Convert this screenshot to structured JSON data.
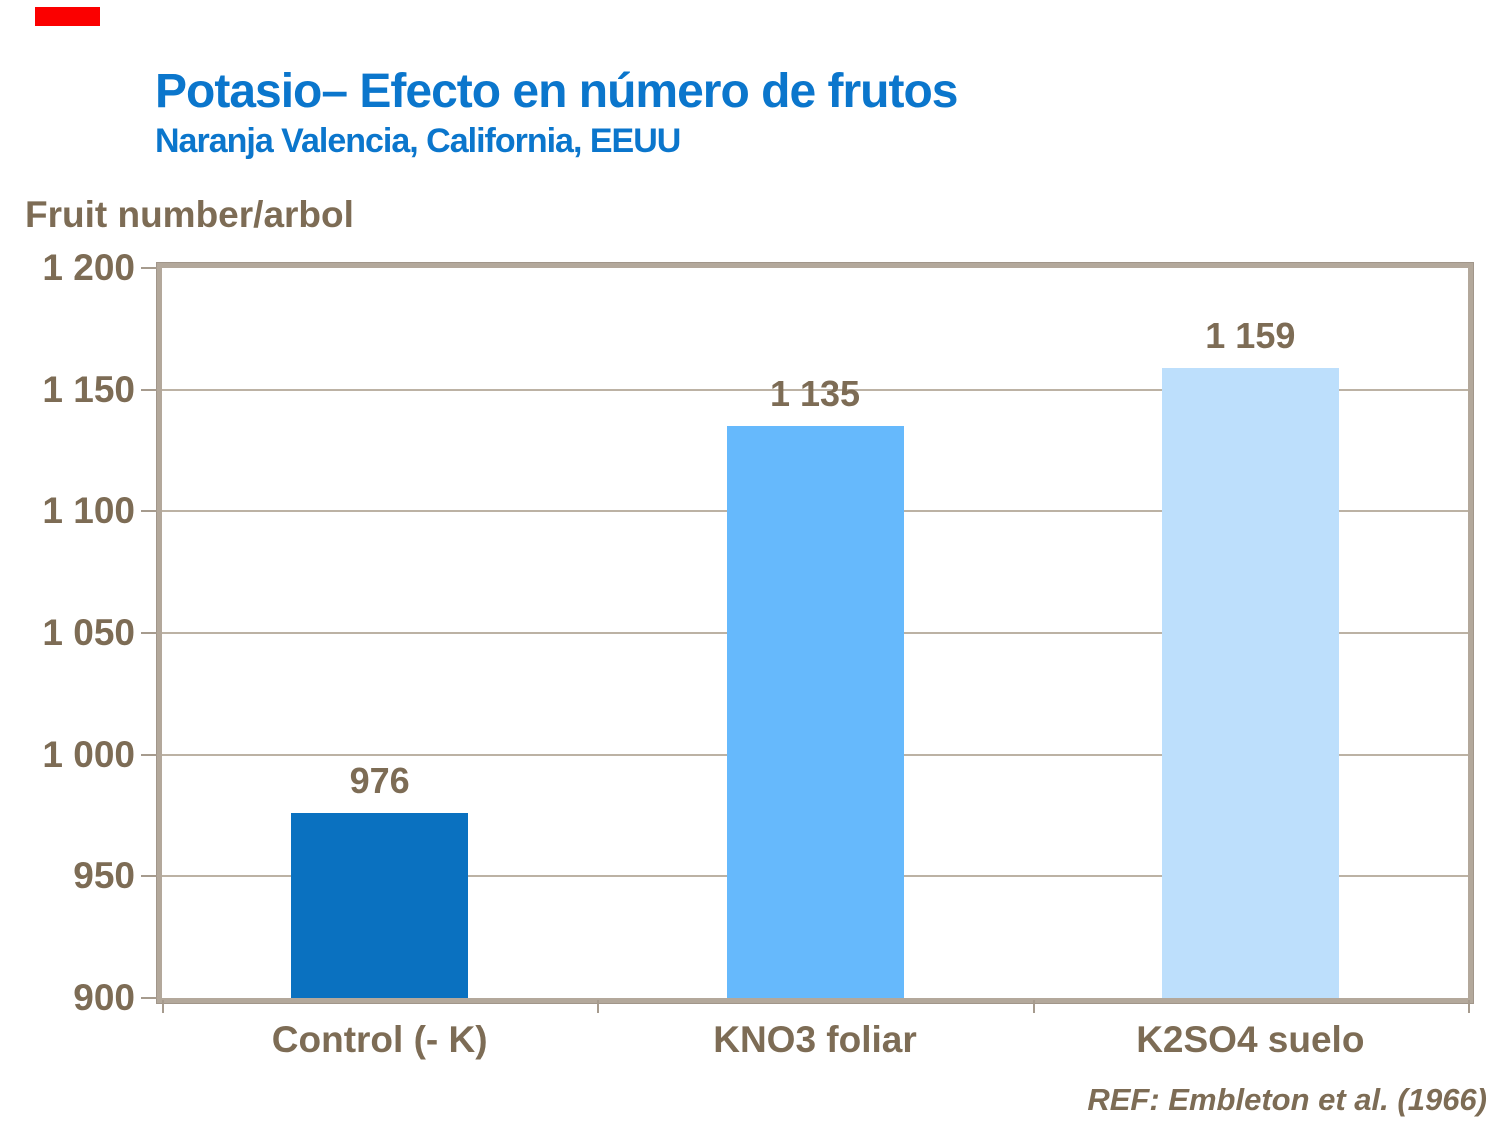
{
  "slide": {
    "marker_color": "#fb0000",
    "title": "Potasio– Efecto en número de frutos",
    "subtitle": "Naranja Valencia, California, EEUU",
    "title_color": "#0b76cc",
    "text_color": "#7d6c55",
    "axis_title": "Fruit number/arbol",
    "reference": "REF: Embleton et al. (1966)"
  },
  "chart_data": {
    "type": "bar",
    "title": "Potasio– Efecto en número de frutos",
    "subtitle": "Naranja Valencia, California, EEUU",
    "ylabel": "Fruit number/arbol",
    "xlabel": "",
    "categories": [
      "Control (- K)",
      "KNO3 foliar",
      "K2SO4 suelo"
    ],
    "values": [
      976,
      1135,
      1159
    ],
    "value_labels": [
      "976",
      "1 135",
      "1 159"
    ],
    "bar_colors": [
      "#0a71c0",
      "#66b9fc",
      "#bddffc"
    ],
    "ylim": [
      900,
      1200
    ],
    "yticks": [
      {
        "value": 1200,
        "label": "1 200"
      },
      {
        "value": 1150,
        "label": "1 150"
      },
      {
        "value": 1100,
        "label": "1 100"
      },
      {
        "value": 1050,
        "label": "1 050"
      },
      {
        "value": 1000,
        "label": "1 000"
      },
      {
        "value": 950,
        "label": "950"
      },
      {
        "value": 900,
        "label": "900"
      }
    ],
    "grid": true,
    "legend": false,
    "reference": "REF: Embleton et al. (1966)"
  }
}
